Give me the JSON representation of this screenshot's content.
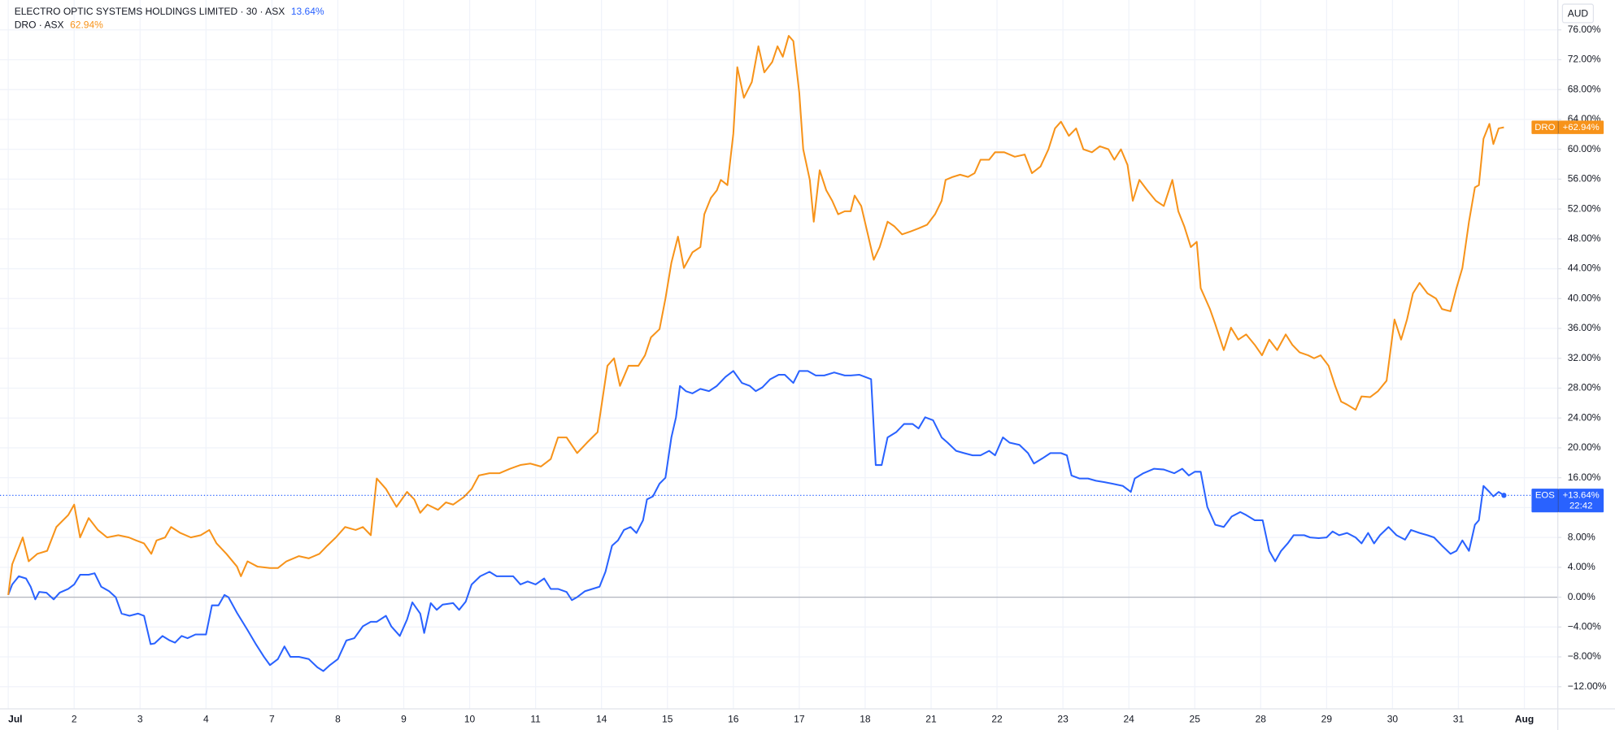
{
  "chart_data": {
    "type": "line",
    "currency_label": "AUD",
    "xlim": [
      -0.125,
      23.5
    ],
    "xticks": [
      {
        "value": 0,
        "label": "Jul"
      },
      {
        "value": 1,
        "label": "2"
      },
      {
        "value": 2,
        "label": "3"
      },
      {
        "value": 3,
        "label": "4"
      },
      {
        "value": 4,
        "label": "7"
      },
      {
        "value": 5,
        "label": "8"
      },
      {
        "value": 6,
        "label": "9"
      },
      {
        "value": 7,
        "label": "10"
      },
      {
        "value": 8,
        "label": "11"
      },
      {
        "value": 9,
        "label": "14"
      },
      {
        "value": 10,
        "label": "15"
      },
      {
        "value": 11,
        "label": "16"
      },
      {
        "value": 12,
        "label": "17"
      },
      {
        "value": 13,
        "label": "18"
      },
      {
        "value": 14,
        "label": "21"
      },
      {
        "value": 15,
        "label": "22"
      },
      {
        "value": 16,
        "label": "23"
      },
      {
        "value": 17,
        "label": "24"
      },
      {
        "value": 18,
        "label": "25"
      },
      {
        "value": 19,
        "label": "28"
      },
      {
        "value": 20,
        "label": "29"
      },
      {
        "value": 21,
        "label": "30"
      },
      {
        "value": 22,
        "label": "31"
      },
      {
        "value": 23,
        "label": "Aug"
      }
    ],
    "ylim": [
      -14.9,
      80
    ],
    "yticks": [
      {
        "value": -12,
        "label": "−12.00%"
      },
      {
        "value": -8,
        "label": "−8.00%"
      },
      {
        "value": -4,
        "label": "−4.00%"
      },
      {
        "value": 0,
        "label": "0.00%"
      },
      {
        "value": 4,
        "label": "4.00%"
      },
      {
        "value": 8,
        "label": "8.00%"
      },
      {
        "value": 12,
        "label": "12.00%"
      },
      {
        "value": 16,
        "label": "16.00%"
      },
      {
        "value": 20,
        "label": "20.00%"
      },
      {
        "value": 24,
        "label": "24.00%"
      },
      {
        "value": 28,
        "label": "28.00%"
      },
      {
        "value": 32,
        "label": "32.00%"
      },
      {
        "value": 36,
        "label": "36.00%"
      },
      {
        "value": 40,
        "label": "40.00%"
      },
      {
        "value": 44,
        "label": "44.00%"
      },
      {
        "value": 48,
        "label": "48.00%"
      },
      {
        "value": 52,
        "label": "52.00%"
      },
      {
        "value": 56,
        "label": "56.00%"
      },
      {
        "value": 60,
        "label": "60.00%"
      },
      {
        "value": 64,
        "label": "64.00%"
      },
      {
        "value": 68,
        "label": "68.00%"
      },
      {
        "value": 72,
        "label": "72.00%"
      },
      {
        "value": 76,
        "label": "76.00%"
      }
    ],
    "grid": true,
    "series": [
      {
        "name": "EOS",
        "description": "ELECTRO OPTIC SYSTEMS HOLDINGS LIMITED · 30 · ASX",
        "legend_value_label": "13.64%",
        "tag_label": "+13.64%",
        "countdown": "22:42",
        "color": "#2962ff",
        "price_line": true,
        "x": [
          0,
          0.06,
          0.16,
          0.27,
          0.34,
          0.41,
          0.47,
          0.58,
          0.69,
          0.78,
          0.91,
          1.0,
          1.09,
          1.22,
          1.31,
          1.41,
          1.53,
          1.63,
          1.72,
          1.84,
          1.97,
          2.06,
          2.16,
          2.22,
          2.34,
          2.45,
          2.53,
          2.63,
          2.72,
          2.84,
          3.0,
          3.09,
          3.19,
          3.28,
          3.34,
          3.47,
          3.63,
          3.75,
          3.88,
          3.97,
          4.09,
          4.19,
          4.28,
          4.41,
          4.56,
          4.69,
          4.78,
          4.88,
          5.0,
          5.13,
          5.25,
          5.38,
          5.5,
          5.59,
          5.73,
          5.81,
          5.94,
          6.05,
          6.13,
          6.25,
          6.31,
          6.41,
          6.5,
          6.59,
          6.75,
          6.84,
          6.94,
          7.03,
          7.16,
          7.3,
          7.41,
          7.53,
          7.66,
          7.77,
          7.88,
          8.0,
          8.13,
          8.23,
          8.34,
          8.47,
          8.55,
          8.63,
          8.75,
          8.86,
          8.97,
          9.06,
          9.16,
          9.25,
          9.34,
          9.44,
          9.53,
          9.63,
          9.69,
          9.78,
          9.88,
          9.97,
          10.06,
          10.13,
          10.19,
          10.28,
          10.38,
          10.5,
          10.63,
          10.75,
          10.88,
          11.0,
          11.13,
          11.25,
          11.34,
          11.44,
          11.56,
          11.69,
          11.78,
          11.91,
          12.0,
          12.13,
          12.25,
          12.38,
          12.53,
          12.69,
          12.78,
          12.91,
          13.0,
          13.09,
          13.16,
          13.25,
          13.34,
          13.47,
          13.59,
          13.72,
          13.81,
          13.91,
          14.03,
          14.16,
          14.25,
          14.38,
          14.5,
          14.63,
          14.75,
          14.88,
          14.97,
          15.09,
          15.19,
          15.34,
          15.47,
          15.56,
          15.69,
          15.81,
          15.97,
          16.06,
          16.13,
          16.25,
          16.38,
          16.5,
          16.63,
          16.75,
          16.91,
          17.03,
          17.09,
          17.22,
          17.38,
          17.53,
          17.69,
          17.81,
          17.91,
          18.0,
          18.09,
          18.19,
          18.31,
          18.44,
          18.56,
          18.69,
          18.78,
          18.91,
          19.03,
          19.13,
          19.22,
          19.31,
          19.41,
          19.5,
          19.66,
          19.75,
          19.88,
          20.0,
          20.09,
          20.19,
          20.31,
          20.44,
          20.53,
          20.63,
          20.72,
          20.81,
          20.94,
          21.06,
          21.19,
          21.28,
          21.41,
          21.53,
          21.63,
          21.75,
          21.88,
          21.97,
          22.06,
          22.16,
          22.25,
          22.31,
          22.38,
          22.47,
          22.53,
          22.61,
          22.69
        ],
        "values": [
          0.3,
          1.7,
          2.8,
          2.5,
          1.4,
          -0.3,
          0.7,
          0.6,
          -0.3,
          0.6,
          1.1,
          1.7,
          3.0,
          3.0,
          3.2,
          1.4,
          0.8,
          0.0,
          -2.2,
          -2.5,
          -2.2,
          -2.5,
          -6.3,
          -6.2,
          -5.2,
          -5.8,
          -6.1,
          -5.2,
          -5.5,
          -5.0,
          -5.0,
          -1.1,
          -1.1,
          0.3,
          0.0,
          -2.1,
          -4.4,
          -6.2,
          -8.0,
          -9.1,
          -8.3,
          -6.6,
          -8.0,
          -8.0,
          -8.3,
          -9.4,
          -9.9,
          -9.1,
          -8.3,
          -5.8,
          -5.5,
          -3.9,
          -3.3,
          -3.3,
          -2.5,
          -3.9,
          -5.2,
          -3.0,
          -0.7,
          -2.2,
          -4.8,
          -0.8,
          -1.7,
          -1.0,
          -0.8,
          -1.7,
          -0.6,
          1.7,
          2.8,
          3.4,
          2.8,
          2.8,
          2.8,
          1.7,
          2.1,
          1.7,
          2.5,
          1.1,
          1.1,
          0.7,
          -0.4,
          0.0,
          0.8,
          1.1,
          1.4,
          3.4,
          6.9,
          7.6,
          9.0,
          9.4,
          8.6,
          10.3,
          13.1,
          13.5,
          15.2,
          16.0,
          21.4,
          24.1,
          28.3,
          27.6,
          27.3,
          27.9,
          27.6,
          28.3,
          29.5,
          30.3,
          28.7,
          28.3,
          27.6,
          28.1,
          29.2,
          29.8,
          29.8,
          28.7,
          30.3,
          30.3,
          29.7,
          29.7,
          30.1,
          29.7,
          29.7,
          29.8,
          29.5,
          29.2,
          17.7,
          17.7,
          21.4,
          22.1,
          23.2,
          23.2,
          22.6,
          24.1,
          23.7,
          21.4,
          20.7,
          19.6,
          19.3,
          19.0,
          19.0,
          19.6,
          19.0,
          21.4,
          20.7,
          20.4,
          19.3,
          17.9,
          18.6,
          19.3,
          19.3,
          19.0,
          16.3,
          15.9,
          15.9,
          15.6,
          15.4,
          15.2,
          14.9,
          14.1,
          15.9,
          16.6,
          17.2,
          17.1,
          16.6,
          17.2,
          16.3,
          16.8,
          16.8,
          12.1,
          9.7,
          9.4,
          10.8,
          11.4,
          11.0,
          10.3,
          10.3,
          6.2,
          4.8,
          6.2,
          7.2,
          8.3,
          8.3,
          8.0,
          7.9,
          8.0,
          8.8,
          8.3,
          8.6,
          8.0,
          7.2,
          8.6,
          7.2,
          8.3,
          9.4,
          8.3,
          7.7,
          9.0,
          8.6,
          8.3,
          8.0,
          6.9,
          5.8,
          6.2,
          7.6,
          6.2,
          9.7,
          10.3,
          14.9,
          14.1,
          13.5,
          14.1,
          13.64
        ]
      },
      {
        "name": "DRO",
        "description": "DRO · ASX",
        "legend_value_label": "62.94%",
        "tag_label": "+62.94%",
        "color": "#f7931a",
        "x": [
          0,
          0.06,
          0.22,
          0.31,
          0.44,
          0.59,
          0.73,
          0.91,
          1.0,
          1.09,
          1.22,
          1.36,
          1.5,
          1.67,
          1.83,
          1.94,
          2.06,
          2.17,
          2.25,
          2.38,
          2.47,
          2.61,
          2.77,
          2.92,
          3.05,
          3.16,
          3.31,
          3.47,
          3.53,
          3.63,
          3.78,
          3.97,
          4.09,
          4.22,
          4.41,
          4.56,
          4.72,
          4.84,
          4.97,
          5.11,
          5.27,
          5.38,
          5.5,
          5.59,
          5.73,
          5.89,
          6.05,
          6.16,
          6.25,
          6.36,
          6.52,
          6.64,
          6.75,
          6.91,
          7.03,
          7.14,
          7.3,
          7.45,
          7.61,
          7.77,
          7.92,
          8.08,
          8.23,
          8.34,
          8.47,
          8.63,
          8.78,
          8.94,
          9.09,
          9.19,
          9.28,
          9.41,
          9.56,
          9.66,
          9.75,
          9.88,
          9.97,
          10.06,
          10.16,
          10.25,
          10.38,
          10.5,
          10.56,
          10.66,
          10.75,
          10.81,
          10.91,
          11.0,
          11.06,
          11.16,
          11.28,
          11.38,
          11.47,
          11.59,
          11.67,
          11.75,
          11.84,
          11.91,
          12.0,
          12.06,
          12.16,
          12.22,
          12.31,
          12.41,
          12.5,
          12.59,
          12.69,
          12.78,
          12.84,
          12.94,
          13.03,
          13.13,
          13.22,
          13.34,
          13.44,
          13.56,
          13.69,
          13.81,
          13.94,
          14.06,
          14.16,
          14.22,
          14.33,
          14.44,
          14.56,
          14.66,
          14.75,
          14.88,
          14.97,
          15.11,
          15.27,
          15.42,
          15.53,
          15.66,
          15.78,
          15.88,
          15.97,
          16.09,
          16.2,
          16.31,
          16.44,
          16.56,
          16.69,
          16.78,
          16.88,
          16.98,
          17.06,
          17.16,
          17.28,
          17.41,
          17.53,
          17.66,
          17.75,
          17.84,
          17.94,
          18.03,
          18.09,
          18.23,
          18.31,
          18.44,
          18.55,
          18.66,
          18.78,
          18.91,
          19.02,
          19.13,
          19.25,
          19.38,
          19.48,
          19.59,
          19.72,
          19.81,
          19.91,
          20.03,
          20.13,
          20.22,
          20.31,
          20.44,
          20.53,
          20.66,
          20.78,
          20.91,
          21.03,
          21.13,
          21.22,
          21.31,
          21.41,
          21.53,
          21.66,
          21.75,
          21.88,
          21.97,
          22.06,
          22.16,
          22.25,
          22.31,
          22.38,
          22.47,
          22.53,
          22.61,
          22.69
        ],
        "values": [
          0.3,
          4.4,
          8.0,
          4.8,
          5.8,
          6.2,
          9.4,
          11.0,
          12.4,
          8.0,
          10.6,
          9.0,
          8.0,
          8.3,
          8.0,
          7.6,
          7.2,
          5.8,
          7.6,
          8.0,
          9.4,
          8.6,
          8.0,
          8.3,
          9.0,
          7.2,
          5.8,
          4.1,
          2.8,
          4.8,
          4.1,
          3.9,
          3.9,
          4.8,
          5.5,
          5.2,
          5.8,
          6.9,
          8.0,
          9.4,
          9.0,
          9.4,
          8.3,
          15.9,
          14.5,
          12.1,
          14.1,
          13.1,
          11.3,
          12.4,
          11.7,
          12.7,
          12.4,
          13.4,
          14.5,
          16.3,
          16.6,
          16.6,
          17.2,
          17.7,
          17.9,
          17.5,
          18.5,
          21.4,
          21.4,
          19.3,
          20.7,
          22.1,
          31.0,
          32.0,
          28.3,
          31.0,
          31.0,
          32.4,
          34.8,
          35.9,
          40.0,
          44.8,
          48.3,
          44.1,
          46.2,
          46.9,
          51.3,
          53.5,
          54.5,
          55.9,
          55.2,
          62.1,
          71.0,
          66.9,
          69.0,
          73.8,
          70.3,
          71.7,
          73.8,
          72.4,
          75.2,
          74.5,
          67.6,
          60.0,
          55.9,
          50.3,
          57.2,
          54.5,
          53.1,
          51.3,
          51.7,
          51.7,
          53.8,
          52.4,
          49.0,
          45.2,
          46.9,
          50.3,
          49.7,
          48.6,
          49.0,
          49.4,
          49.9,
          51.3,
          53.1,
          55.9,
          56.3,
          56.6,
          56.3,
          56.8,
          58.6,
          58.6,
          59.6,
          59.6,
          59.0,
          59.3,
          56.8,
          57.7,
          60.0,
          62.8,
          63.7,
          61.8,
          62.8,
          60.0,
          59.6,
          60.4,
          60.0,
          58.6,
          60.0,
          57.9,
          53.1,
          55.9,
          54.5,
          53.1,
          52.4,
          55.9,
          51.7,
          49.7,
          46.9,
          47.6,
          41.4,
          38.6,
          36.6,
          33.1,
          36.1,
          34.5,
          35.2,
          33.8,
          32.4,
          34.5,
          33.1,
          35.2,
          33.8,
          32.8,
          32.4,
          32.0,
          32.4,
          31.0,
          28.3,
          26.2,
          25.8,
          25.1,
          26.9,
          26.8,
          27.6,
          29.0,
          37.2,
          34.5,
          37.2,
          40.7,
          42.1,
          40.7,
          40.0,
          38.6,
          38.3,
          41.4,
          44.1,
          50.3,
          54.9,
          55.2,
          61.4,
          63.4,
          60.7,
          62.8,
          62.94
        ]
      }
    ]
  }
}
